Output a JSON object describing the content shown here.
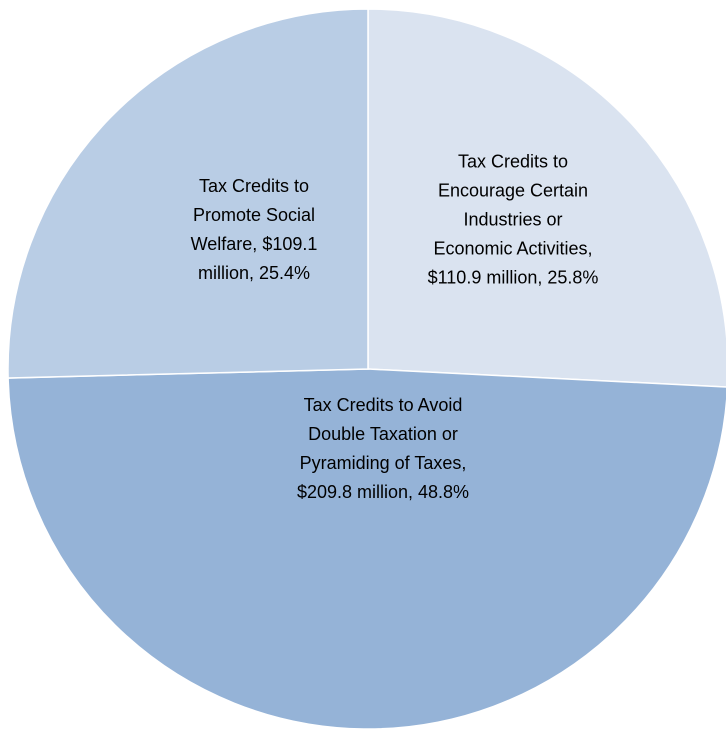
{
  "chart_data": {
    "type": "pie",
    "categories": [
      "Tax Credits to Encourage Certain Industries or Economic Activities,",
      "Tax Credits to Avoid Double Taxation or Pyramiding of Taxes,",
      "Tax Credits to Promote Social Welfare,"
    ],
    "values": [
      25.8,
      48.8,
      25.4
    ],
    "value_labels": [
      "$110.9 million, 25.8%",
      "$209.8 million, 48.8%",
      "$109.1 million, 25.4%"
    ],
    "colors": [
      "#dae3f0",
      "#95b3d7",
      "#b9cde5"
    ]
  }
}
